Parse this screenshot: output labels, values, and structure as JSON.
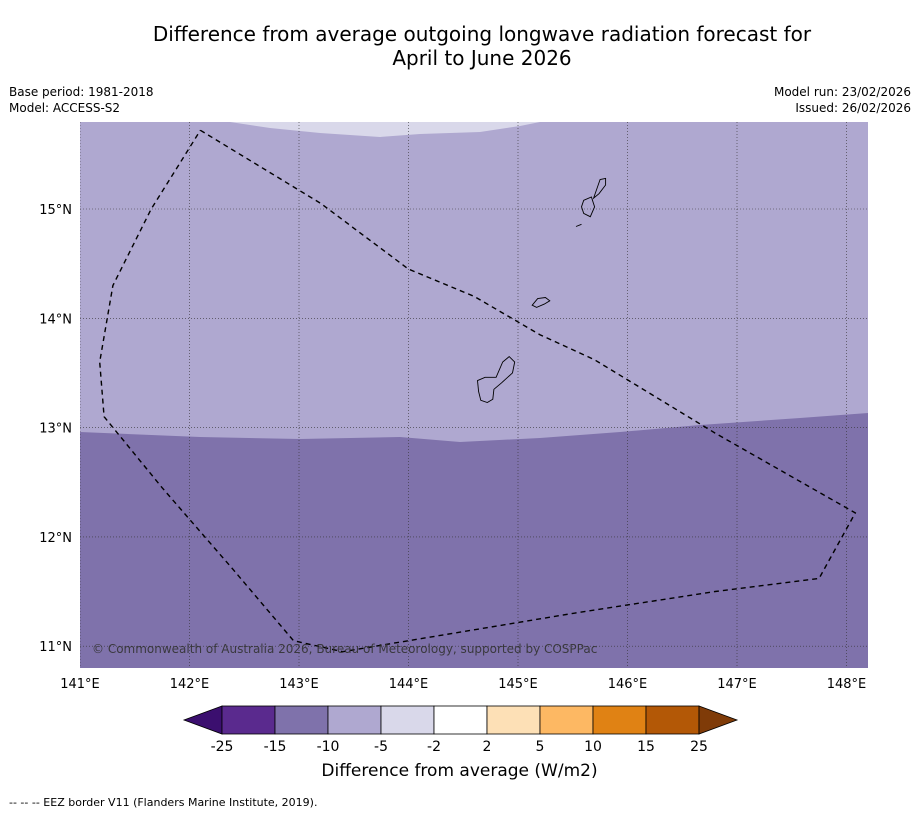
{
  "title_line1": "Difference from average outgoing longwave radiation forecast for",
  "title_line2": "April to June 2026",
  "meta_left": {
    "base_period": "Base period: 1981-2018",
    "model": "Model: ACCESS-S2"
  },
  "meta_right": {
    "model_run": "Model run: 23/02/2026",
    "issued": "Issued: 26/02/2026"
  },
  "map": {
    "lon_range": [
      141.0,
      148.2
    ],
    "lat_range": [
      10.8,
      15.8
    ],
    "lon_ticks": [
      {
        "value": 141,
        "label": "141°E"
      },
      {
        "value": 142,
        "label": "142°E"
      },
      {
        "value": 143,
        "label": "143°E"
      },
      {
        "value": 144,
        "label": "144°E"
      },
      {
        "value": 145,
        "label": "145°E"
      },
      {
        "value": 146,
        "label": "146°E"
      },
      {
        "value": 147,
        "label": "147°E"
      },
      {
        "value": 148,
        "label": "148°E"
      }
    ],
    "lat_ticks": [
      {
        "value": 15,
        "label": "15°N"
      },
      {
        "value": 14,
        "label": "14°N"
      },
      {
        "value": 13,
        "label": "13°N"
      },
      {
        "value": 12,
        "label": "12°N"
      },
      {
        "value": 11,
        "label": "11°N"
      }
    ],
    "copyright": "© Commonwealth of Australia 2026, Bureau of Meteorology, supported by COSPPac",
    "field_colors": {
      "very_low": "#d9d8ea",
      "low": "#afa8d0",
      "lower": "#7f72ab"
    },
    "eez_border": [
      [
        142.1,
        15.72
      ],
      [
        143.2,
        15.05
      ],
      [
        144.0,
        14.45
      ],
      [
        144.6,
        14.2
      ],
      [
        145.2,
        13.85
      ],
      [
        145.7,
        13.62
      ],
      [
        146.8,
        12.95
      ],
      [
        148.08,
        12.22
      ],
      [
        147.75,
        11.62
      ],
      [
        146.8,
        11.5
      ],
      [
        145.5,
        11.3
      ],
      [
        144.0,
        11.05
      ],
      [
        143.4,
        10.95
      ],
      [
        142.95,
        11.05
      ],
      [
        142.4,
        11.7
      ],
      [
        141.75,
        12.45
      ],
      [
        141.22,
        13.1
      ],
      [
        141.18,
        13.6
      ],
      [
        141.3,
        14.3
      ],
      [
        141.65,
        15.0
      ],
      [
        142.1,
        15.72
      ]
    ],
    "islands": [
      [
        [
          144.63,
          13.43
        ],
        [
          144.7,
          13.46
        ],
        [
          144.8,
          13.46
        ],
        [
          144.86,
          13.6
        ],
        [
          144.92,
          13.65
        ],
        [
          144.97,
          13.6
        ],
        [
          144.95,
          13.5
        ],
        [
          144.85,
          13.41
        ],
        [
          144.78,
          13.35
        ],
        [
          144.77,
          13.26
        ],
        [
          144.72,
          13.23
        ],
        [
          144.66,
          13.25
        ],
        [
          144.64,
          13.33
        ],
        [
          144.63,
          13.43
        ]
      ],
      [
        [
          145.13,
          14.12
        ],
        [
          145.18,
          14.18
        ],
        [
          145.25,
          14.19
        ],
        [
          145.29,
          14.16
        ],
        [
          145.24,
          14.13
        ],
        [
          145.17,
          14.1
        ],
        [
          145.13,
          14.12
        ]
      ],
      [
        [
          145.6,
          15.08
        ],
        [
          145.67,
          15.11
        ],
        [
          145.7,
          15.02
        ],
        [
          145.66,
          14.93
        ],
        [
          145.6,
          14.96
        ],
        [
          145.58,
          15.02
        ],
        [
          145.6,
          15.08
        ]
      ],
      [
        [
          145.69,
          15.1
        ],
        [
          145.75,
          15.27
        ],
        [
          145.8,
          15.28
        ],
        [
          145.8,
          15.22
        ],
        [
          145.74,
          15.14
        ],
        [
          145.69,
          15.1
        ]
      ],
      [
        [
          145.53,
          14.84
        ],
        [
          145.58,
          14.86
        ]
      ]
    ]
  },
  "colorbar": {
    "label": "Difference from average (W/m2)",
    "bins": [
      {
        "color": "#3b0f6f"
      },
      {
        "color": "#5a2a8e"
      },
      {
        "color": "#7f72ab"
      },
      {
        "color": "#afa8d0"
      },
      {
        "color": "#d9d8ea"
      },
      {
        "color": "#ffffff"
      },
      {
        "color": "#fde0b6"
      },
      {
        "color": "#fdb863"
      },
      {
        "color": "#e08214"
      },
      {
        "color": "#b35806"
      },
      {
        "color": "#7f3b08"
      }
    ],
    "ticks": [
      "-25",
      "-15",
      "-10",
      "-5",
      "-2",
      "2",
      "5",
      "10",
      "15",
      "25"
    ]
  },
  "footnote": "--  --  -- EEZ border V11 (Flanders Marine Institute, 2019)."
}
